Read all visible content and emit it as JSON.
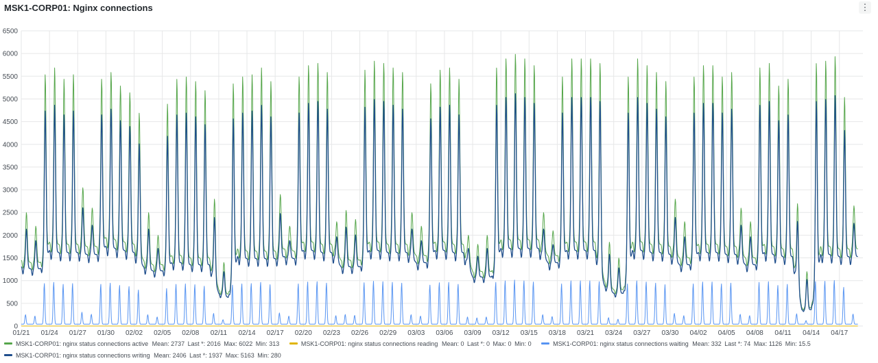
{
  "panel": {
    "title": "MSK1-CORP01: Nginx connections",
    "menu_icon": "kebab-menu-icon",
    "menu_glyph": "⋮"
  },
  "legend": {
    "rows": [
      [
        {
          "name": "MSK1-CORP01: nginx status connections active",
          "color": "#56a64b",
          "stats": [
            "Mean: 2737",
            "Last *: 2016",
            "Max: 6022",
            "Min: 313"
          ]
        },
        {
          "name": "MSK1-CORP01: nginx status connections reading",
          "color": "#e0b400",
          "stats": [
            "Mean: 0",
            "Last *: 0",
            "Max: 0",
            "Min: 0"
          ]
        },
        {
          "name": "MSK1-CORP01: nginx status connections waiting",
          "color": "#5794f2",
          "stats": [
            "Mean: 332",
            "Last *: 74",
            "Max: 1126",
            "Min: 15.5"
          ]
        }
      ],
      [
        {
          "name": "MSK1-CORP01: nginx status connections writing",
          "color": "#1f4e8c",
          "stats": [
            "Mean: 2406",
            "Last *: 1937",
            "Max: 5163",
            "Min: 280"
          ]
        }
      ]
    ]
  },
  "chart_data": {
    "type": "line",
    "title": "MSK1-CORP01: Nginx connections",
    "xlabel": "",
    "ylabel": "",
    "ylim": [
      0,
      6500
    ],
    "yticks": [
      0,
      500,
      1000,
      1500,
      2000,
      2500,
      3000,
      3500,
      4000,
      4500,
      5000,
      5500,
      6000,
      6500
    ],
    "xticks": [
      "01/21",
      "01/24",
      "01/27",
      "01/30",
      "02/02",
      "02/05",
      "02/08",
      "02/11",
      "02/14",
      "02/17",
      "02/20",
      "02/23",
      "02/26",
      "02/29",
      "03/03",
      "03/06",
      "03/09",
      "03/12",
      "03/15",
      "03/18",
      "03/21",
      "03/24",
      "03/27",
      "03/30",
      "04/02",
      "04/05",
      "04/08",
      "04/11",
      "04/14",
      "04/17"
    ],
    "x_start": "01/21",
    "x_days_shown": 89.5,
    "grid": true,
    "legend_position": "bottom",
    "series": [
      {
        "name": "MSK1-CORP01: nginx status connections active",
        "color": "#56a64b",
        "mean": 2737,
        "last": 2016,
        "max": 6022,
        "min": 313
      },
      {
        "name": "MSK1-CORP01: nginx status connections reading",
        "color": "#e0b400",
        "mean": 0,
        "last": 0,
        "max": 0,
        "min": 0
      },
      {
        "name": "MSK1-CORP01: nginx status connections waiting",
        "color": "#5794f2",
        "mean": 332,
        "last": 74,
        "max": 1126,
        "min": 15.5
      },
      {
        "name": "MSK1-CORP01: nginx status connections writing",
        "color": "#1f4e8c",
        "mean": 2406,
        "last": 1937,
        "max": 5163,
        "min": 280
      }
    ],
    "daily_peaks_active": [
      {
        "date": "01/21",
        "peak": 2500,
        "base": 1450
      },
      {
        "date": "01/22",
        "peak": 2200,
        "base": 1400
      },
      {
        "date": "01/23",
        "peak": 5550,
        "base": 1400
      },
      {
        "date": "01/24",
        "peak": 5700,
        "base": 1850
      },
      {
        "date": "01/25",
        "peak": 5450,
        "base": 1800
      },
      {
        "date": "01/26",
        "peak": 5550,
        "base": 1800
      },
      {
        "date": "01/27",
        "peak": 3050,
        "base": 1800
      },
      {
        "date": "01/28",
        "peak": 2600,
        "base": 1750
      },
      {
        "date": "01/29",
        "peak": 5450,
        "base": 1750
      },
      {
        "date": "01/30",
        "peak": 5600,
        "base": 1950
      },
      {
        "date": "01/31",
        "peak": 5300,
        "base": 1900
      },
      {
        "date": "02/01",
        "peak": 5150,
        "base": 1850
      },
      {
        "date": "02/02",
        "peak": 4700,
        "base": 1800
      },
      {
        "date": "02/03",
        "peak": 2500,
        "base": 1450
      },
      {
        "date": "02/04",
        "peak": 2000,
        "base": 1350
      },
      {
        "date": "02/05",
        "peak": 4900,
        "base": 1350
      },
      {
        "date": "02/06",
        "peak": 5450,
        "base": 1550
      },
      {
        "date": "02/07",
        "peak": 5500,
        "base": 1550
      },
      {
        "date": "02/08",
        "peak": 5400,
        "base": 1500
      },
      {
        "date": "02/09",
        "peak": 5200,
        "base": 1500
      },
      {
        "date": "02/10",
        "peak": 2800,
        "base": 1500
      },
      {
        "date": "02/11",
        "peak": 1400,
        "base": 800
      },
      {
        "date": "02/12",
        "peak": 5350,
        "base": 700
      },
      {
        "date": "02/13",
        "peak": 5500,
        "base": 1700
      },
      {
        "date": "02/14",
        "peak": 5550,
        "base": 1650
      },
      {
        "date": "02/15",
        "peak": 5700,
        "base": 1650
      },
      {
        "date": "02/16",
        "peak": 5400,
        "base": 1650
      },
      {
        "date": "02/17",
        "peak": 2900,
        "base": 1650
      },
      {
        "date": "02/18",
        "peak": 2200,
        "base": 1700
      },
      {
        "date": "02/19",
        "peak": 5500,
        "base": 1650
      },
      {
        "date": "02/20",
        "peak": 5750,
        "base": 1850
      },
      {
        "date": "02/21",
        "peak": 5800,
        "base": 1850
      },
      {
        "date": "02/22",
        "peak": 5600,
        "base": 1800
      },
      {
        "date": "02/23",
        "peak": 2300,
        "base": 1800
      },
      {
        "date": "02/24",
        "peak": 2550,
        "base": 1450
      },
      {
        "date": "02/25",
        "peak": 2350,
        "base": 1450
      },
      {
        "date": "02/26",
        "peak": 5650,
        "base": 1450
      },
      {
        "date": "02/27",
        "peak": 5850,
        "base": 1850
      },
      {
        "date": "02/28",
        "peak": 5800,
        "base": 1850
      },
      {
        "date": "02/29",
        "peak": 5700,
        "base": 1800
      },
      {
        "date": "03/01",
        "peak": 5600,
        "base": 1800
      },
      {
        "date": "03/02",
        "peak": 2500,
        "base": 1800
      },
      {
        "date": "03/03",
        "peak": 2200,
        "base": 1550
      },
      {
        "date": "03/04",
        "peak": 5350,
        "base": 1550
      },
      {
        "date": "03/05",
        "peak": 5650,
        "base": 1850
      },
      {
        "date": "03/06",
        "peak": 5700,
        "base": 1850
      },
      {
        "date": "03/07",
        "peak": 5450,
        "base": 1800
      },
      {
        "date": "03/08",
        "peak": 2000,
        "base": 1800
      },
      {
        "date": "03/09",
        "peak": 1800,
        "base": 1200
      },
      {
        "date": "03/10",
        "peak": 2000,
        "base": 1200
      },
      {
        "date": "03/11",
        "peak": 5700,
        "base": 1200
      },
      {
        "date": "03/12",
        "peak": 5900,
        "base": 1900
      },
      {
        "date": "03/13",
        "peak": 6000,
        "base": 1900
      },
      {
        "date": "03/14",
        "peak": 5900,
        "base": 1900
      },
      {
        "date": "03/15",
        "peak": 5750,
        "base": 1900
      },
      {
        "date": "03/16",
        "peak": 2500,
        "base": 1900
      },
      {
        "date": "03/17",
        "peak": 2100,
        "base": 1550
      },
      {
        "date": "03/18",
        "peak": 5500,
        "base": 1550
      },
      {
        "date": "03/19",
        "peak": 5900,
        "base": 1850
      },
      {
        "date": "03/20",
        "peak": 5900,
        "base": 1850
      },
      {
        "date": "03/21",
        "peak": 5900,
        "base": 1850
      },
      {
        "date": "03/22",
        "peak": 5800,
        "base": 1850
      },
      {
        "date": "03/23",
        "peak": 1850,
        "base": 1000
      },
      {
        "date": "03/24",
        "peak": 1500,
        "base": 800
      },
      {
        "date": "03/25",
        "peak": 5500,
        "base": 800
      },
      {
        "date": "03/26",
        "peak": 5900,
        "base": 1850
      },
      {
        "date": "03/27",
        "peak": 5750,
        "base": 1850
      },
      {
        "date": "03/28",
        "peak": 5600,
        "base": 1800
      },
      {
        "date": "03/29",
        "peak": 5400,
        "base": 1800
      },
      {
        "date": "03/30",
        "peak": 2800,
        "base": 1750
      },
      {
        "date": "03/31",
        "peak": 2300,
        "base": 1500
      },
      {
        "date": "04/01",
        "peak": 5500,
        "base": 1500
      },
      {
        "date": "04/02",
        "peak": 5750,
        "base": 1800
      },
      {
        "date": "04/03",
        "peak": 5750,
        "base": 1800
      },
      {
        "date": "04/04",
        "peak": 5500,
        "base": 1800
      },
      {
        "date": "04/05",
        "peak": 5600,
        "base": 1750
      },
      {
        "date": "04/06",
        "peak": 2600,
        "base": 1750
      },
      {
        "date": "04/07",
        "peak": 2300,
        "base": 1500
      },
      {
        "date": "04/08",
        "peak": 5700,
        "base": 1500
      },
      {
        "date": "04/09",
        "peak": 5800,
        "base": 1800
      },
      {
        "date": "04/10",
        "peak": 5300,
        "base": 1750
      },
      {
        "date": "04/11",
        "peak": 5450,
        "base": 1700
      },
      {
        "date": "04/12",
        "peak": 2700,
        "base": 1700
      },
      {
        "date": "04/13",
        "peak": 1200,
        "base": 400
      },
      {
        "date": "04/14",
        "peak": 5800,
        "base": 400
      },
      {
        "date": "04/15",
        "peak": 5850,
        "base": 1750
      },
      {
        "date": "04/16",
        "peak": 5950,
        "base": 1750
      },
      {
        "date": "04/17",
        "peak": 5050,
        "base": 1700
      },
      {
        "date": "04/18",
        "peak": 2650,
        "base": 1700
      }
    ],
    "waiting_ratio_to_active_peak": 0.17,
    "writing_ratio_to_active": 0.86
  }
}
